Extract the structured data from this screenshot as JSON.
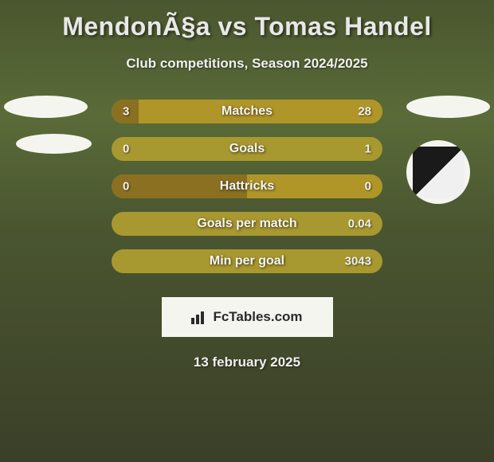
{
  "title": "MendonÃ§a vs Tomas Handel",
  "subtitle": "Club competitions, Season 2024/2025",
  "date": "13 february 2025",
  "footer": {
    "text": "FcTables.com"
  },
  "colors": {
    "bar_base": "#a89830",
    "bar_left": "#8a7020",
    "bar_right": "#b09628",
    "bar_split": "#7a6818"
  },
  "stats": [
    {
      "label": "Matches",
      "left_value": "3",
      "right_value": "28",
      "left_pct": 10,
      "right_pct": 90
    },
    {
      "label": "Goals",
      "left_value": "0",
      "right_value": "1",
      "left_pct": 0,
      "right_pct": 100
    },
    {
      "label": "Hattricks",
      "left_value": "0",
      "right_value": "0",
      "left_pct": 50,
      "right_pct": 50
    },
    {
      "label": "Goals per match",
      "left_value": "",
      "right_value": "0.04",
      "left_pct": 0,
      "right_pct": 100
    },
    {
      "label": "Min per goal",
      "left_value": "",
      "right_value": "3043",
      "left_pct": 0,
      "right_pct": 100
    }
  ]
}
